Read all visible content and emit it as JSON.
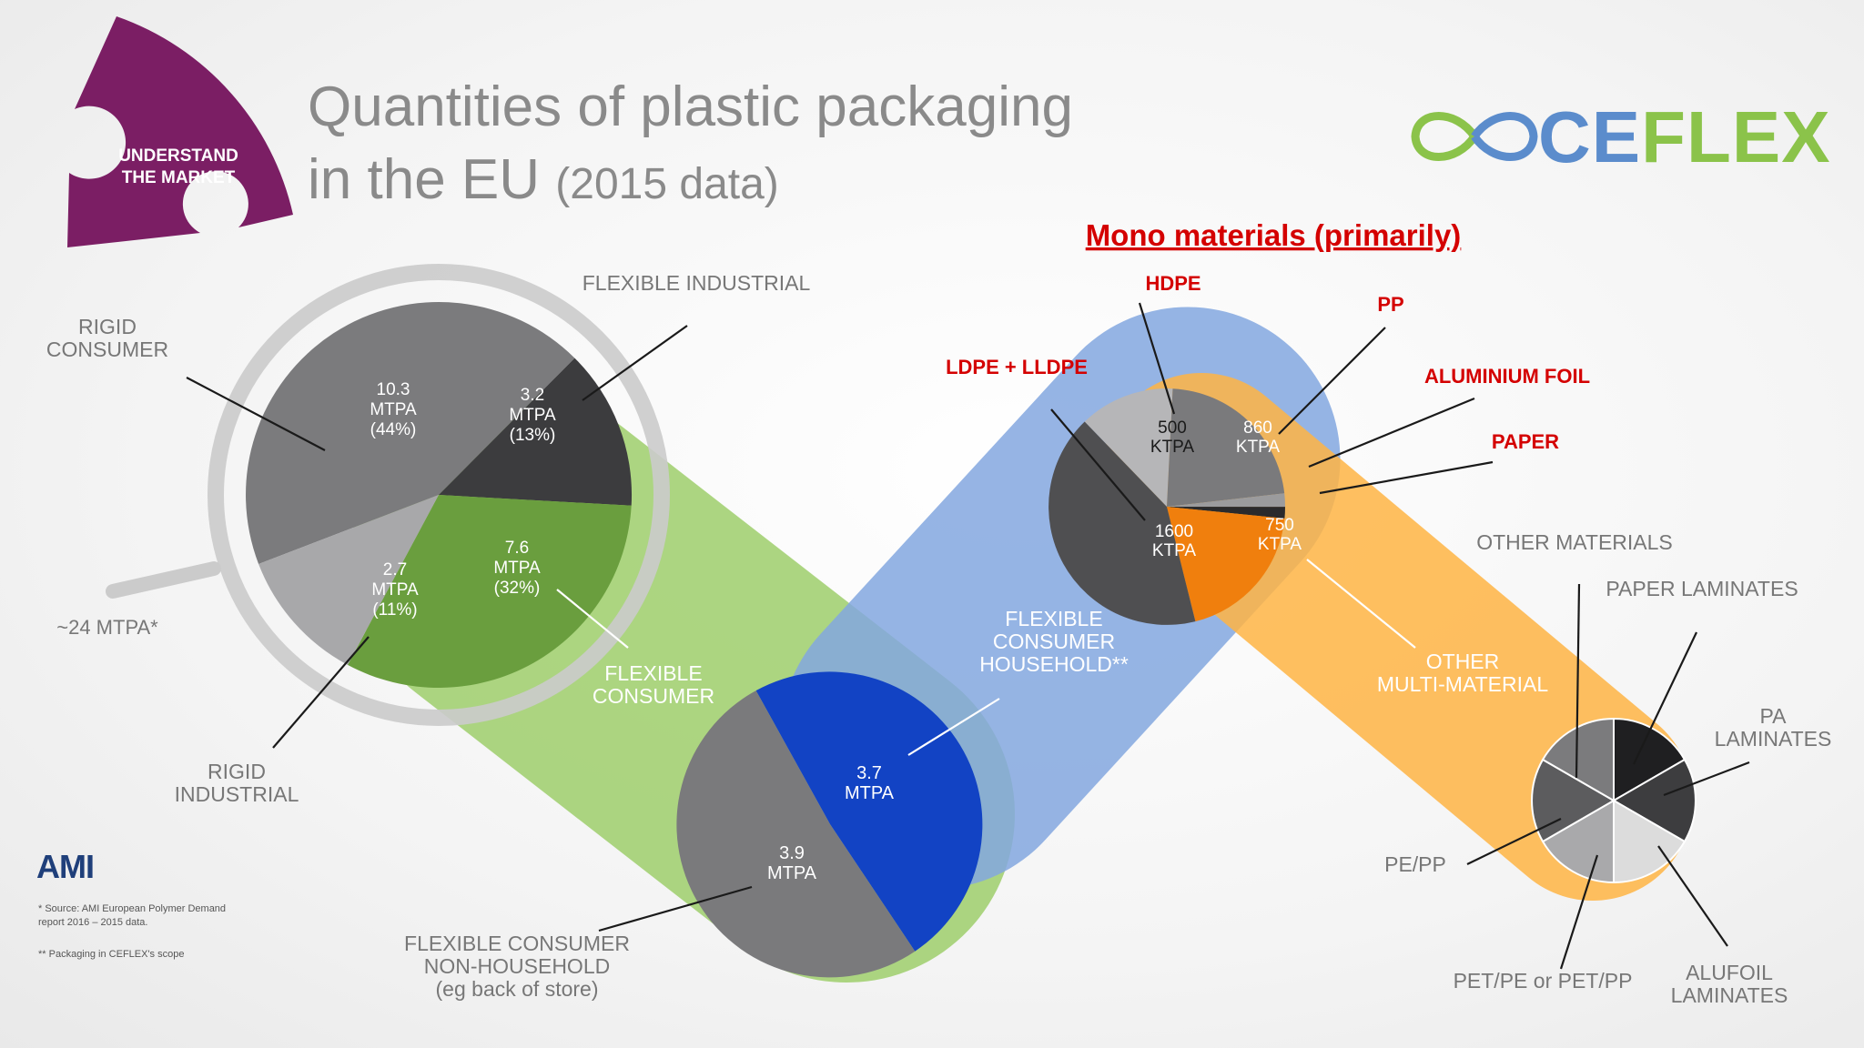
{
  "title": {
    "line1": "Quantities of plastic packaging",
    "line2_main": "in the EU",
    "line2_small": "(2015 data)"
  },
  "badge": {
    "line1": "UNDERSTAND",
    "line2": "THE MARKET"
  },
  "brand": {
    "left": "CE",
    "right": "FLEX"
  },
  "ami_logo": "AMI",
  "footnotes": {
    "source_line1": "* Source: AMI European Polymer Demand",
    "source_line2": "report 2016 – 2015 data.",
    "scope": "** Packaging in CEFLEX's scope"
  },
  "total_label": "~24 MTPA*",
  "mono_heading": "Mono materials (primarily)",
  "colors": {
    "rigid_consumer": "#7b7b7d",
    "flexible_industrial": "#3c3c3e",
    "flexible_consumer": "#6a9e3e",
    "rigid_industrial": "#a8a8aa",
    "household": "#1243c4",
    "non_household": "#7a7a7c",
    "orange": "#f07f0d",
    "green_band": "#9fcf6c",
    "blue_band": "#84a8e0",
    "orange_band": "#ffb545",
    "mono_heading": "#d40000"
  },
  "chart_data": [
    {
      "type": "pie",
      "title": "~24 MTPA*",
      "slices": [
        {
          "name": "RIGID CONSUMER",
          "value": 10.3,
          "share_pct": 44,
          "value_text": "10.3",
          "unit_text": "MTPA",
          "pct_text": "(44%)"
        },
        {
          "name": "FLEXIBLE INDUSTRIAL",
          "value": 3.2,
          "share_pct": 13,
          "value_text": "3.2",
          "unit_text": "MTPA",
          "pct_text": "(13%)"
        },
        {
          "name": "FLEXIBLE CONSUMER",
          "value": 7.6,
          "share_pct": 32,
          "value_text": "7.6",
          "unit_text": "MTPA",
          "pct_text": "(32%)"
        },
        {
          "name": "RIGID INDUSTRIAL",
          "value": 2.7,
          "share_pct": 11,
          "value_text": "2.7",
          "unit_text": "MTPA",
          "pct_text": "(11%)"
        }
      ]
    },
    {
      "type": "pie",
      "slices": [
        {
          "name": "FLEXIBLE CONSUMER HOUSEHOLD**",
          "label_lines": [
            "FLEXIBLE",
            "CONSUMER",
            "HOUSEHOLD**"
          ],
          "value": 3.7,
          "value_text": "3.7",
          "unit_text": "MTPA"
        },
        {
          "name": "FLEXIBLE CONSUMER NON-HOUSEHOLD (eg back of store)",
          "label_lines": [
            "FLEXIBLE CONSUMER",
            "NON-HOUSEHOLD",
            "(eg back of store)"
          ],
          "value": 3.9,
          "value_text": "3.9",
          "unit_text": "MTPA"
        }
      ]
    },
    {
      "type": "pie",
      "unit": "KTPA",
      "slices": [
        {
          "name": "HDPE",
          "value": 500,
          "value_text": "500",
          "unit_text": "KTPA"
        },
        {
          "name": "PP",
          "value": 860,
          "value_text": "860",
          "unit_text": "KTPA"
        },
        {
          "name": "ALUMINIUM FOIL",
          "value": 70
        },
        {
          "name": "PAPER",
          "value": 60
        },
        {
          "name": "OTHER MULTI-MATERIAL",
          "label_lines": [
            "OTHER",
            "MULTI-MATERIAL"
          ],
          "value": 750,
          "value_text": "750",
          "unit_text": "KTPA"
        },
        {
          "name": "LDPE + LLDPE",
          "value": 1600,
          "value_text": "1600",
          "unit_text": "KTPA"
        }
      ]
    },
    {
      "type": "pie",
      "title": "OTHER MATERIALS",
      "slices": [
        {
          "name": "PAPER LAMINATES",
          "value": 1
        },
        {
          "name": "PA LAMINATES",
          "label_lines": [
            "PA",
            "LAMINATES"
          ],
          "value": 1
        },
        {
          "name": "ALUFOIL LAMINATES",
          "label_lines": [
            "ALUFOIL",
            "LAMINATES"
          ],
          "value": 1
        },
        {
          "name": "PET/PE or PET/PP",
          "value": 1
        },
        {
          "name": "PE/PP",
          "value": 1
        },
        {
          "name": "OTHER",
          "value": 1
        }
      ]
    }
  ]
}
